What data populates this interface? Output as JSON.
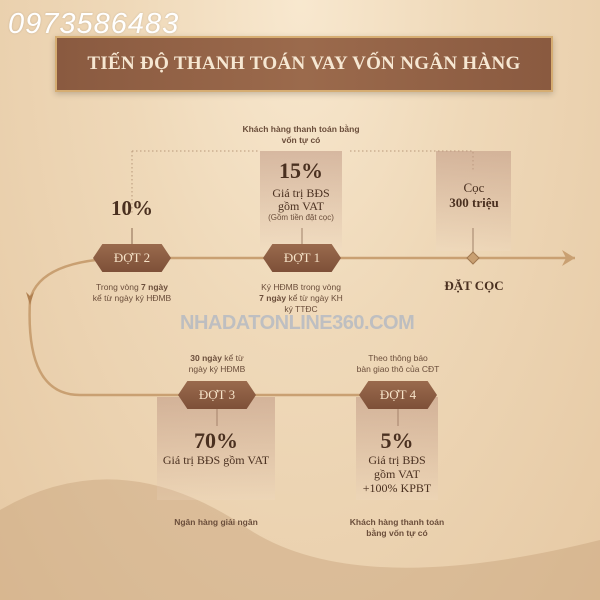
{
  "phone": "0973586483",
  "title": "TIẾN ĐỘ THANH TOÁN VAY VỐN NGÂN HÀNG",
  "watermark": "NHADATONLINE360.COM",
  "deposit": {
    "amount_line1": "Cọc",
    "amount_line2": "300 triệu",
    "label": "ĐẶT CỌC"
  },
  "stages": [
    {
      "label": "ĐỢT 1",
      "top_note": "Khách hàng thanh toán bằng vốn tự có",
      "percent": "15%",
      "desc1": "Giá trị BĐS",
      "desc2": "gồm VAT",
      "desc3": "(Gồm tiền đặt cọc)",
      "note_a": "Ký HĐMB trong vòng",
      "note_b": "7 ngày",
      "note_c": " kể từ ngày KH",
      "note_d": "ký TTĐC"
    },
    {
      "label": "ĐỢT 2",
      "percent": "10%",
      "note_a": "Trong vòng ",
      "note_b": "7 ngày",
      "note_c": "kể từ ngày ký HĐMB"
    },
    {
      "label": "ĐỢT 3",
      "note_a": "30 ngày",
      "note_b": " kể từ",
      "note_c": "ngày ký HĐMB",
      "percent": "70%",
      "desc1": "Giá trị BĐS gồm VAT",
      "bottom_note": "Ngân hàng giải ngân"
    },
    {
      "label": "ĐỢT 4",
      "note_a": "Theo thông báo",
      "note_b": "bàn giao thô của CĐT",
      "percent": "5%",
      "desc1": "Giá trị BĐS",
      "desc2": "gồm VAT",
      "desc3": "+100% KPBT",
      "bottom_note": "Khách hàng thanh toán bằng vốn tự có"
    }
  ],
  "colors": {
    "accent": "#8a5a40",
    "gold": "#d6ad72",
    "text": "#4a3020"
  }
}
